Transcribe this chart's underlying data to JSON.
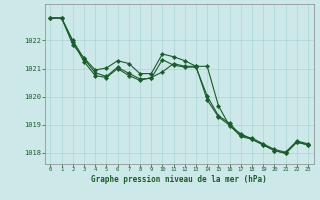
{
  "line1": [
    1022.8,
    1022.8,
    1022.0,
    1021.35,
    1020.85,
    1020.72,
    1021.05,
    1020.83,
    1020.63,
    1020.65,
    1021.32,
    1021.12,
    1021.05,
    1021.05,
    1020.02,
    1019.32,
    1019.05,
    1018.62,
    1018.52,
    1018.32,
    1018.12,
    1018.02,
    1018.42,
    1018.32
  ],
  "line2": [
    1022.8,
    1022.8,
    1021.95,
    1021.25,
    1020.75,
    1020.68,
    1021.0,
    1020.75,
    1020.58,
    1020.68,
    1020.88,
    1021.18,
    1021.08,
    1021.08,
    1019.88,
    1019.28,
    1018.98,
    1018.58,
    1018.48,
    1018.28,
    1018.08,
    1017.98,
    1018.38,
    1018.28
  ],
  "line3": [
    1022.8,
    1022.8,
    1021.85,
    1021.38,
    1020.95,
    1021.02,
    1021.28,
    1021.18,
    1020.82,
    1020.82,
    1021.52,
    1021.42,
    1021.28,
    1021.08,
    1021.08,
    1019.68,
    1018.95,
    1018.68,
    1018.48,
    1018.28,
    1018.08,
    1017.98,
    1018.38,
    1018.28
  ],
  "x": [
    0,
    1,
    2,
    3,
    4,
    5,
    6,
    7,
    8,
    9,
    10,
    11,
    12,
    13,
    14,
    15,
    16,
    17,
    18,
    19,
    20,
    21,
    22,
    23
  ],
  "ylim": [
    1017.6,
    1023.3
  ],
  "yticks": [
    1018,
    1019,
    1020,
    1021,
    1022
  ],
  "xticks": [
    0,
    1,
    2,
    3,
    4,
    5,
    6,
    7,
    8,
    9,
    10,
    11,
    12,
    13,
    14,
    15,
    16,
    17,
    18,
    19,
    20,
    21,
    22,
    23
  ],
  "xlabel": "Graphe pression niveau de la mer (hPa)",
  "bg_color": "#cce8e8",
  "line_color": "#1a5c2a",
  "grid_color": "#aad4d4",
  "tick_color": "#1a5c2a",
  "spine_color": "#888888"
}
